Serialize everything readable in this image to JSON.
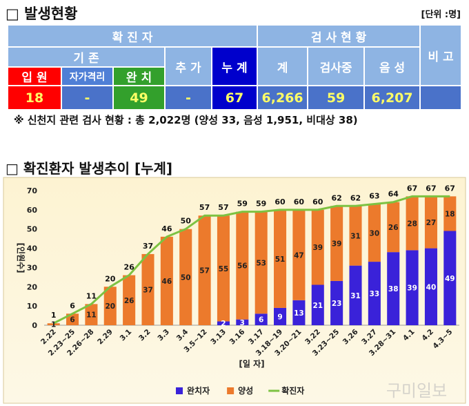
{
  "header": {
    "title": "□ 발생현황",
    "unit": "[단위 :명]"
  },
  "table": {
    "group_headers": [
      "확 진 자",
      "검 사 현 황",
      "비 고"
    ],
    "sub_headers": [
      "기 존",
      "추 가",
      "누 계",
      "계",
      "검사중",
      "음 성"
    ],
    "detail_headers": [
      "입 원",
      "자가격리",
      "완 치"
    ],
    "values": [
      "18",
      "-",
      "49",
      "-",
      "67",
      "6,266",
      "59",
      "6,207"
    ]
  },
  "note": "※ 신천지 관련 검사 현황 : 총 2,022명 (양성 33, 음성 1,951, 비대상 38)",
  "section_title": "□ 확진환자 발생추이 [누계]",
  "watermark": "구미일보",
  "chart_data": {
    "type": "bar",
    "stacked": true,
    "categories": [
      "2.22",
      "2.23~25",
      "2.26~28",
      "2.29",
      "3.1",
      "3.2",
      "3.3",
      "3.4",
      "3.5~12",
      "3.13",
      "3.16",
      "3.17",
      "3.18~19",
      "3.20~21",
      "3.22",
      "3.23~25",
      "3.26",
      "3.27",
      "3.28~31",
      "4.1",
      "4.2",
      "4.3~5"
    ],
    "series": [
      {
        "name": "완치자",
        "color": "#3a22d9",
        "values": [
          0,
          0,
          0,
          0,
          0,
          0,
          0,
          0,
          0,
          2,
          3,
          6,
          9,
          13,
          21,
          23,
          31,
          33,
          38,
          39,
          40,
          49
        ]
      },
      {
        "name": "양성",
        "color": "#ec7a2c",
        "values": [
          1,
          6,
          11,
          20,
          26,
          37,
          46,
          50,
          57,
          55,
          56,
          53,
          51,
          47,
          39,
          39,
          31,
          30,
          26,
          28,
          27,
          18
        ]
      },
      {
        "name": "확진자",
        "color": "#7dc242",
        "type": "line",
        "values": [
          1,
          6,
          11,
          20,
          26,
          37,
          46,
          50,
          57,
          57,
          59,
          59,
          60,
          60,
          60,
          62,
          62,
          63,
          64,
          67,
          67,
          67
        ]
      }
    ],
    "ylim": [
      0,
      70
    ],
    "yticks": [
      0,
      10,
      20,
      30,
      40,
      50,
      60,
      70
    ],
    "ylabel": "[인원수]",
    "xlabel": "[일 자]",
    "grid": false,
    "legend": "bottom"
  }
}
